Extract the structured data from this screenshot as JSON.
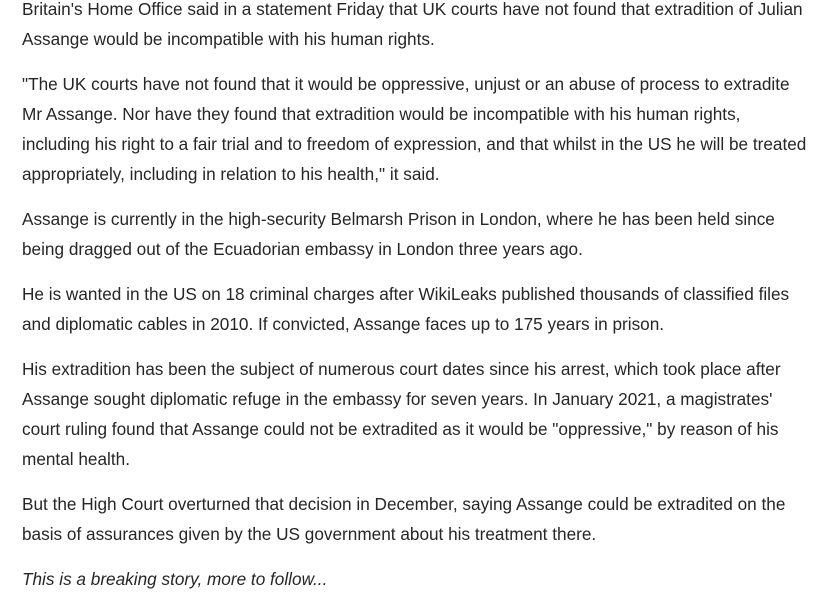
{
  "article": {
    "paragraphs": [
      "Britain's Home Office said in a statement Friday that UK courts have not found that extradition of Julian Assange would be incompatible with his human rights.",
      "\"The UK courts have not found that it would be oppressive, unjust or an abuse of process to extradite Mr Assange. Nor have they found that extradition would be incompatible with his human rights, including his right to a fair trial and to freedom of expression, and that whilst in the US he will be treated appropriately, including in relation to his health,\" it said.",
      "Assange is currently in the high-security Belmarsh Prison in London, where he has been held since being dragged out of the Ecuadorian embassy in London three years ago.",
      "He is wanted in the US on 18 criminal charges after WikiLeaks published thousands of classified files and diplomatic cables in 2010. If convicted, Assange faces up to 175 years in prison.",
      "His extradition has been the subject of numerous court dates since his arrest, which took place after Assange sought diplomatic refuge in the embassy for seven years. In January 2021, a magistrates' court ruling found that Assange could not be extradited as it would be \"oppressive,\" by reason of his mental health.",
      "But the High Court overturned that decision in December, saying Assange could be extradited on the basis of assurances given by the US government about his treatment there."
    ],
    "note": "This is a breaking story, more to follow..."
  }
}
